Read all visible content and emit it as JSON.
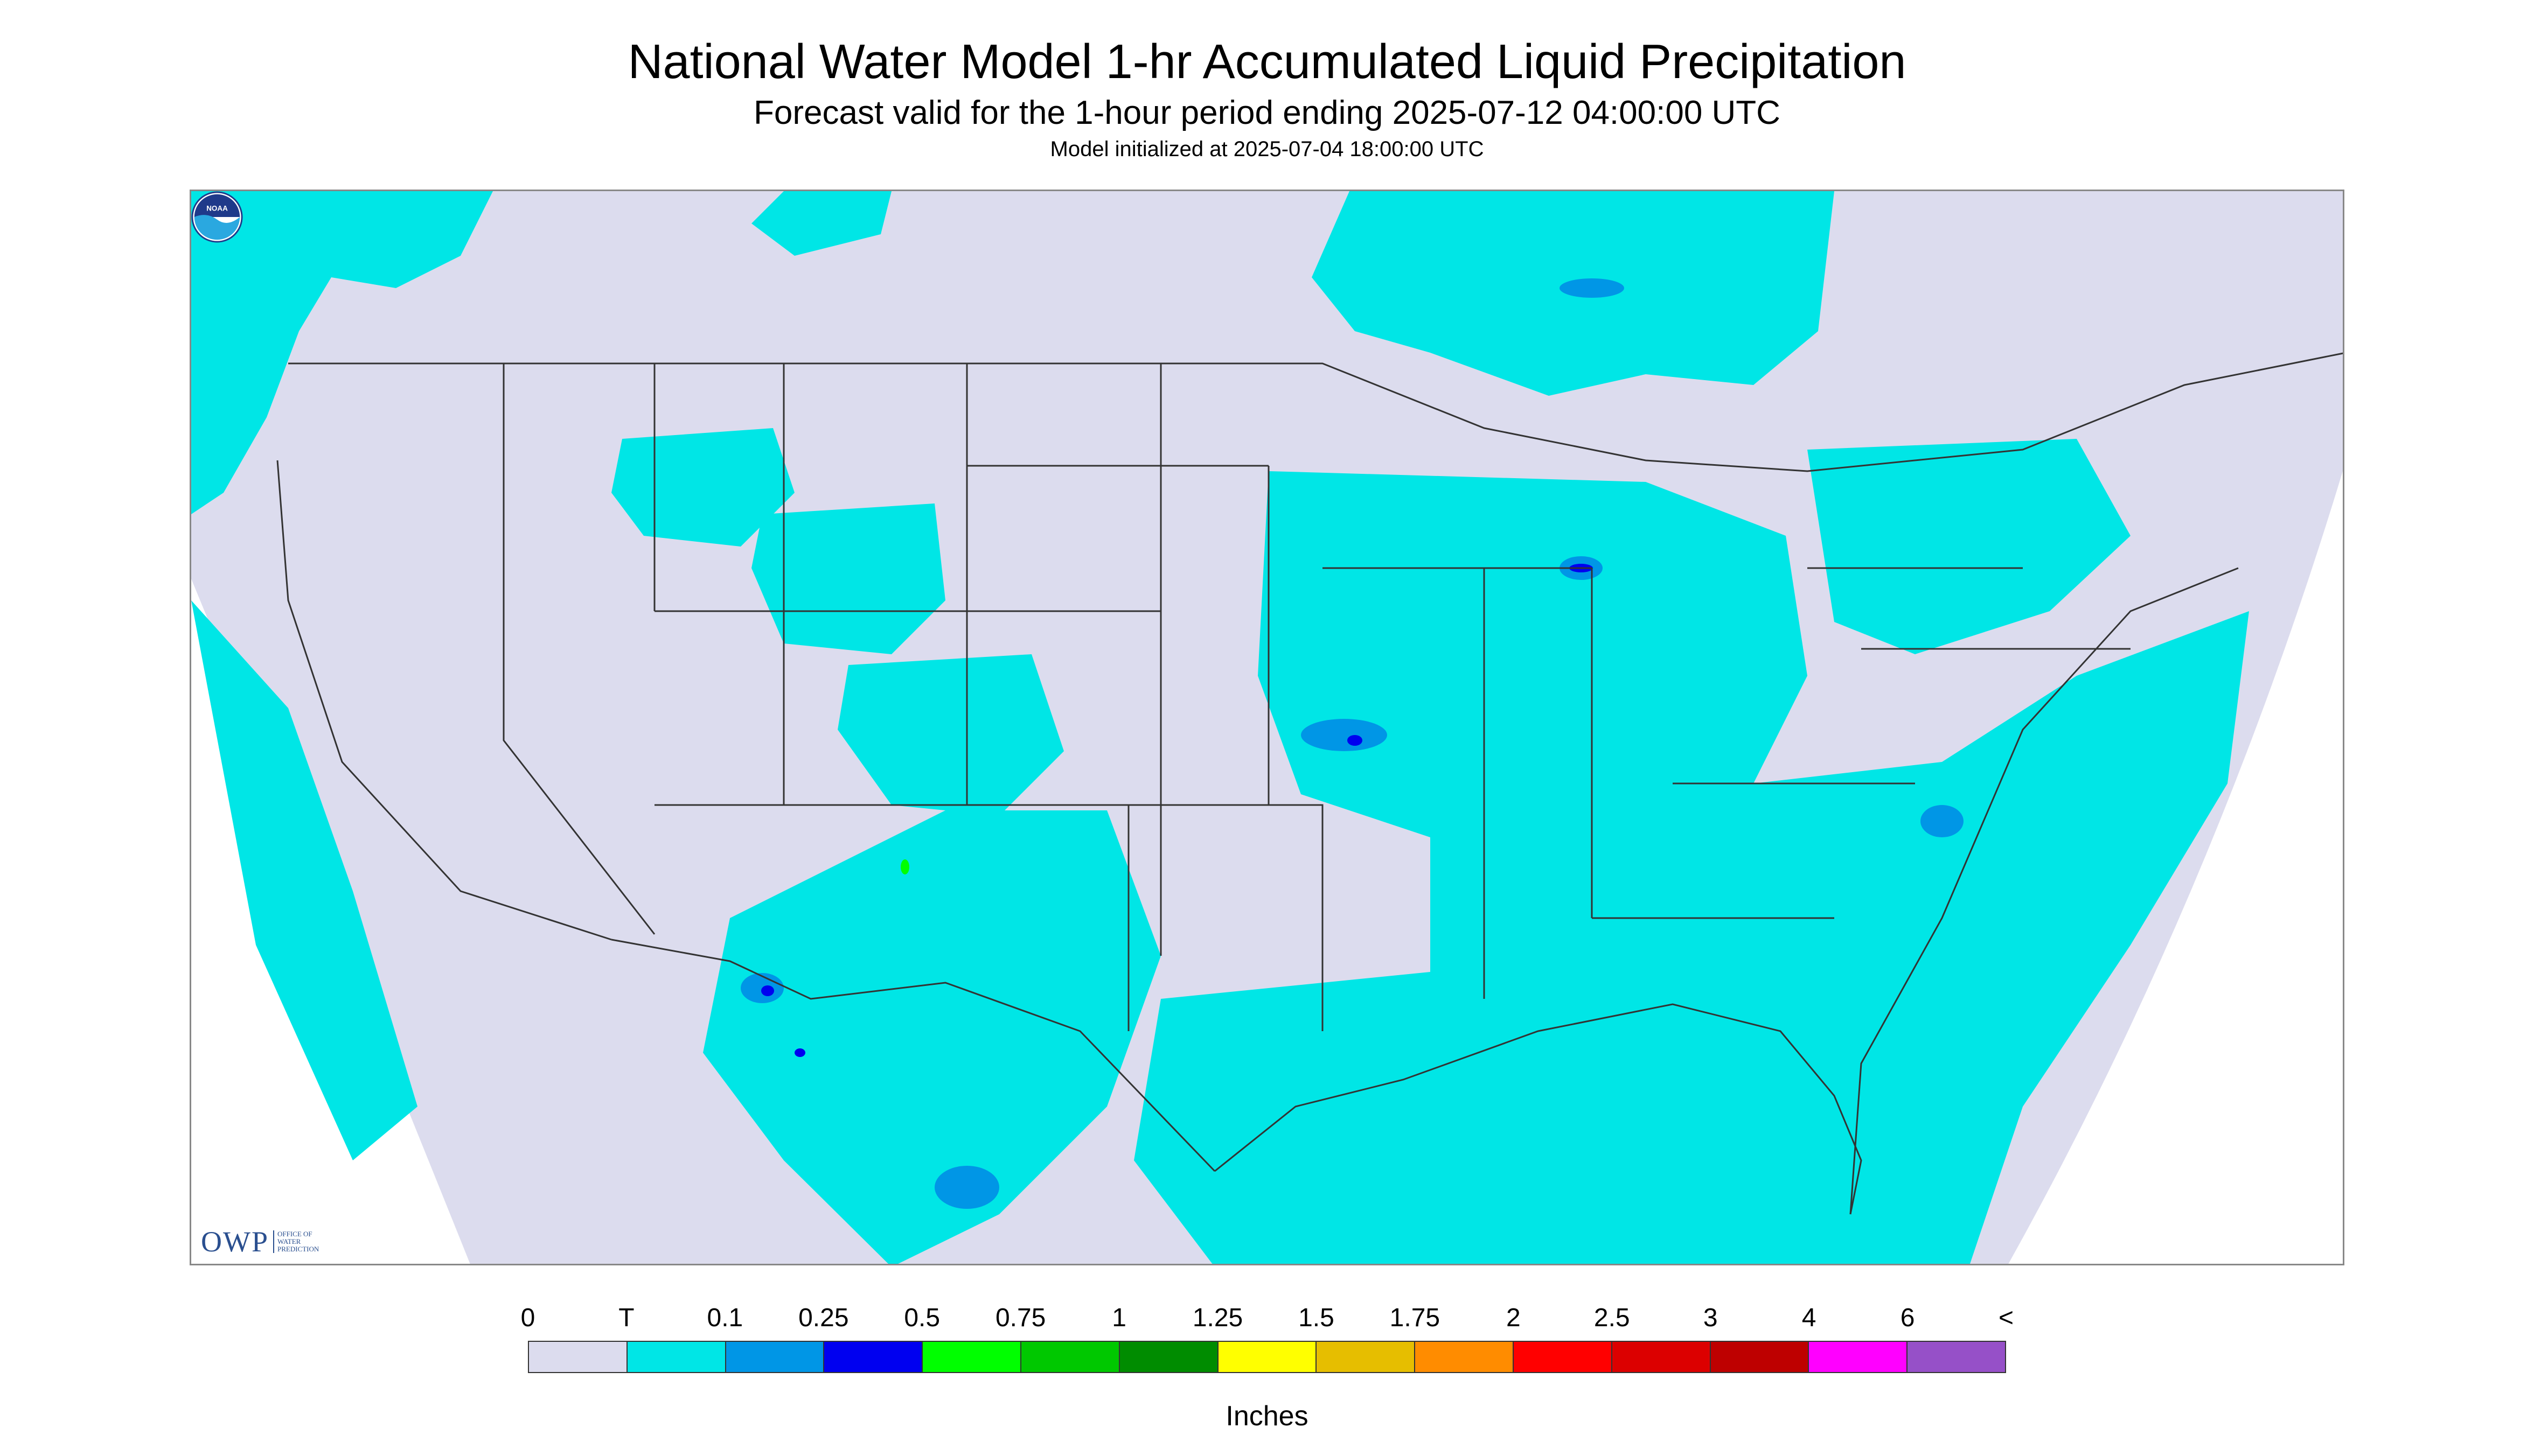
{
  "header": {
    "title": "National Water Model 1-hr Accumulated Liquid Precipitation",
    "subtitle": "Forecast valid for the 1-hour period ending 2025-07-12 04:00:00 UTC",
    "init": "Model initialized at 2025-07-04 18:00:00 UTC"
  },
  "logos": {
    "owp_text": "OWP",
    "owp_sub": "OFFICE OF WATER PREDICTION",
    "noaa_text": "NOAA"
  },
  "legend": {
    "labels": [
      "0",
      "T",
      "0.1",
      "0.25",
      "0.5",
      "0.75",
      "1",
      "1.25",
      "1.5",
      "1.75",
      "2",
      "2.5",
      "3",
      "4",
      "6",
      "<"
    ],
    "colors": [
      "#dcdcee",
      "#00e6e6",
      "#0096e6",
      "#0000f0",
      "#00ff00",
      "#00c800",
      "#008c00",
      "#ffff00",
      "#e6be00",
      "#ff8c00",
      "#ff0000",
      "#dc0000",
      "#be0000",
      "#ff00ff",
      "#9650c8"
    ],
    "unit": "Inches"
  },
  "map": {
    "background_color": "#dcdcee",
    "trace_color": "#00e6e6",
    "light_color": "#0096e6",
    "heavy_color": "#0000f0",
    "intense_color": "#00ff00",
    "boundary_color": "#333333"
  }
}
